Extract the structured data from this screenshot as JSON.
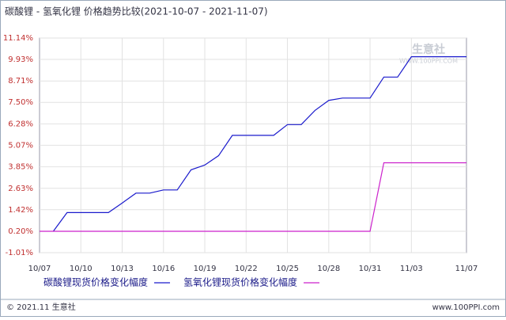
{
  "chart_data": {
    "type": "line",
    "title": "碳酸锂 - 氢氧化锂 价格趋势比较(2021-10-07 - 2021-11-07)",
    "categories": [
      "10/07",
      null,
      null,
      "10/10",
      null,
      null,
      "10/13",
      null,
      null,
      "10/16",
      null,
      null,
      "10/19",
      null,
      null,
      "10/22",
      null,
      null,
      "10/25",
      null,
      null,
      "10/28",
      null,
      null,
      "10/31",
      null,
      null,
      "11/03",
      null,
      null,
      null,
      "11/07"
    ],
    "series": [
      {
        "name": "碳酸锂现货价格变化幅度",
        "color": "#1a1acc",
        "values": [
          null,
          0.2,
          1.26,
          1.26,
          1.26,
          1.26,
          1.8,
          2.36,
          2.36,
          2.54,
          2.54,
          3.68,
          3.95,
          4.48,
          5.63,
          5.63,
          5.63,
          5.63,
          6.24,
          6.24,
          7.04,
          7.61,
          7.74,
          7.74,
          7.74,
          8.93,
          8.93,
          10.08,
          10.08,
          10.08,
          10.08,
          10.08
        ]
      },
      {
        "name": "氢氧化锂现货价格变化幅度",
        "color": "#cc22cc",
        "values": [
          0.2,
          0.2,
          0.2,
          0.2,
          0.2,
          0.2,
          0.2,
          0.2,
          0.2,
          0.2,
          0.2,
          0.2,
          0.2,
          0.2,
          0.2,
          0.2,
          0.2,
          0.2,
          0.2,
          0.2,
          0.2,
          0.2,
          0.2,
          0.2,
          0.2,
          4.08,
          4.08,
          4.08,
          4.08,
          4.08,
          4.08,
          4.08
        ]
      }
    ],
    "ylim": [
      -1.01,
      11.14
    ],
    "yticks": [
      {
        "value": -1.01,
        "label": "-1.01%"
      },
      {
        "value": 0.2,
        "label": "0.20%"
      },
      {
        "value": 1.42,
        "label": "1.42%"
      },
      {
        "value": 2.63,
        "label": "2.63%"
      },
      {
        "value": 3.85,
        "label": "3.85%"
      },
      {
        "value": 5.07,
        "label": "5.07%"
      },
      {
        "value": 6.28,
        "label": "6.28%"
      },
      {
        "value": 7.5,
        "label": "7.50%"
      },
      {
        "value": 8.71,
        "label": "8.71%"
      },
      {
        "value": 9.93,
        "label": "9.93%"
      },
      {
        "value": 11.14,
        "label": "11.14%"
      }
    ],
    "grid": true
  },
  "watermark": {
    "name": "生意社",
    "url": "WWW.100PPI.COM"
  },
  "footer": {
    "copyright": "© 2021.11 生意社",
    "website": "www.100PPI.com"
  }
}
